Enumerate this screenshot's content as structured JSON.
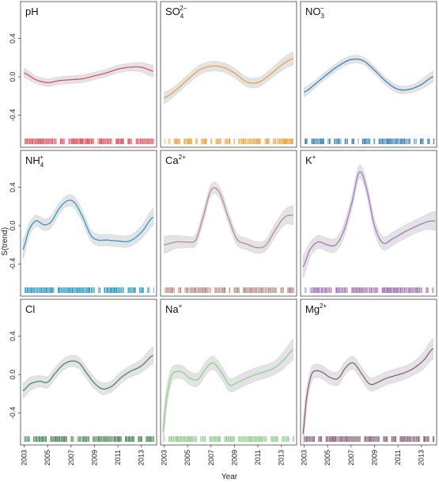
{
  "xlabel": "Year",
  "ylabel": "S(trend)",
  "x_ticks": [
    "2003",
    "2005",
    "2007",
    "2009",
    "2011",
    "2013"
  ],
  "y_ticks": [
    "0.4",
    "0.0",
    "-0.4"
  ],
  "chart_data": {
    "type": "line",
    "title": "",
    "xlabel": "Year",
    "ylabel": "S(trend)",
    "xlim": [
      2002.7,
      2014.3
    ],
    "ylim": [
      -0.62,
      0.62
    ],
    "x_ticks": [
      2003,
      2005,
      2007,
      2009,
      2011,
      2013
    ],
    "y_ticks": [
      0.4,
      0.0,
      -0.4
    ],
    "grid": false,
    "layout": "3x3 panels",
    "panels": [
      {
        "title_parts": [
          {
            "t": "pH"
          }
        ],
        "color": "#e0505a",
        "x": [
          2003.0,
          2004.0,
          2005.0,
          2006.0,
          2007.0,
          2008.0,
          2009.0,
          2010.0,
          2011.0,
          2012.0,
          2013.0,
          2014.0
        ],
        "y": [
          0.04,
          -0.03,
          -0.06,
          -0.04,
          -0.03,
          -0.02,
          0.01,
          0.04,
          0.08,
          0.1,
          0.1,
          0.06
        ],
        "band": [
          0.05,
          0.04,
          0.04,
          0.04,
          0.04,
          0.04,
          0.04,
          0.04,
          0.04,
          0.04,
          0.05,
          0.06
        ]
      },
      {
        "title_parts": [
          {
            "t": "SO"
          },
          {
            "t": "4",
            "sub": true
          },
          {
            "t": "2−",
            "sup": true
          }
        ],
        "color": "#e8a33a",
        "x": [
          2003.0,
          2004.0,
          2005.0,
          2006.0,
          2007.0,
          2008.0,
          2009.0,
          2010.0,
          2011.0,
          2012.0,
          2013.0,
          2014.0
        ],
        "y": [
          -0.22,
          -0.14,
          -0.03,
          0.07,
          0.11,
          0.1,
          0.04,
          -0.05,
          -0.06,
          0.02,
          0.12,
          0.19
        ],
        "band": [
          0.06,
          0.05,
          0.05,
          0.05,
          0.05,
          0.05,
          0.05,
          0.05,
          0.05,
          0.05,
          0.06,
          0.07
        ]
      },
      {
        "title_parts": [
          {
            "t": "NO"
          },
          {
            "t": "3",
            "sub": true
          },
          {
            "t": "−",
            "sup": true
          }
        ],
        "color": "#3d84b8",
        "x": [
          2003.0,
          2004.0,
          2005.0,
          2006.0,
          2007.0,
          2008.0,
          2009.0,
          2010.0,
          2011.0,
          2012.0,
          2013.0,
          2014.0
        ],
        "y": [
          -0.16,
          -0.07,
          0.03,
          0.12,
          0.18,
          0.17,
          0.07,
          -0.05,
          -0.13,
          -0.13,
          -0.08,
          0.0
        ],
        "band": [
          0.05,
          0.04,
          0.04,
          0.04,
          0.04,
          0.04,
          0.04,
          0.04,
          0.04,
          0.04,
          0.05,
          0.06
        ]
      },
      {
        "title_parts": [
          {
            "t": "NH"
          },
          {
            "t": "4",
            "sub": true
          },
          {
            "t": "+",
            "sup": true
          }
        ],
        "color": "#2a9bc6",
        "x": [
          2002.9,
          2003.4,
          2004.0,
          2004.7,
          2005.3,
          2006.0,
          2006.7,
          2007.3,
          2008.0,
          2008.7,
          2009.3,
          2010.0,
          2011.0,
          2012.0,
          2013.0,
          2014.0
        ],
        "y": [
          -0.25,
          -0.05,
          0.05,
          0.01,
          0.04,
          0.18,
          0.26,
          0.24,
          0.09,
          -0.1,
          -0.15,
          -0.15,
          -0.16,
          -0.16,
          -0.07,
          0.09
        ],
        "band": [
          0.1,
          0.07,
          0.06,
          0.06,
          0.06,
          0.06,
          0.06,
          0.06,
          0.06,
          0.06,
          0.06,
          0.06,
          0.06,
          0.06,
          0.07,
          0.09
        ]
      },
      {
        "title_parts": [
          {
            "t": "Ca"
          },
          {
            "t": "2+",
            "sup": true
          }
        ],
        "color": "#b88c88",
        "x": [
          2003.0,
          2004.0,
          2005.0,
          2005.7,
          2006.3,
          2007.0,
          2007.7,
          2008.5,
          2009.2,
          2010.0,
          2011.0,
          2011.7,
          2012.5,
          2013.3,
          2014.0
        ],
        "y": [
          -0.2,
          -0.17,
          -0.17,
          -0.15,
          0.08,
          0.37,
          0.35,
          0.08,
          -0.14,
          -0.19,
          -0.23,
          -0.2,
          -0.04,
          0.09,
          0.11
        ],
        "band": [
          0.09,
          0.07,
          0.06,
          0.06,
          0.06,
          0.06,
          0.06,
          0.06,
          0.06,
          0.06,
          0.06,
          0.06,
          0.07,
          0.08,
          0.1
        ]
      },
      {
        "title_parts": [
          {
            "t": "K"
          },
          {
            "t": "+",
            "sup": true
          }
        ],
        "color": "#a678b6",
        "x": [
          2002.9,
          2003.5,
          2004.2,
          2005.0,
          2005.7,
          2006.4,
          2007.1,
          2007.7,
          2008.3,
          2009.0,
          2009.7,
          2010.5,
          2011.5,
          2012.5,
          2013.5,
          2014.2
        ],
        "y": [
          -0.43,
          -0.25,
          -0.17,
          -0.2,
          -0.2,
          -0.05,
          0.25,
          0.56,
          0.4,
          0.0,
          -0.18,
          -0.14,
          -0.07,
          -0.01,
          0.04,
          0.05
        ],
        "band": [
          0.12,
          0.08,
          0.07,
          0.07,
          0.07,
          0.07,
          0.07,
          0.07,
          0.07,
          0.07,
          0.07,
          0.07,
          0.07,
          0.07,
          0.08,
          0.1
        ]
      },
      {
        "title_parts": [
          {
            "t": "Cl"
          }
        ],
        "color": "#4a8a58",
        "x": [
          2002.9,
          2003.5,
          2004.3,
          2005.0,
          2005.7,
          2006.3,
          2007.0,
          2007.7,
          2008.3,
          2009.0,
          2009.7,
          2010.5,
          2011.3,
          2012.0,
          2013.0,
          2014.0
        ],
        "y": [
          -0.17,
          -0.1,
          -0.07,
          -0.08,
          0.02,
          0.1,
          0.14,
          0.12,
          0.02,
          -0.09,
          -0.15,
          -0.12,
          -0.03,
          0.03,
          0.09,
          0.2
        ],
        "band": [
          0.08,
          0.07,
          0.06,
          0.06,
          0.06,
          0.06,
          0.06,
          0.06,
          0.06,
          0.06,
          0.06,
          0.06,
          0.06,
          0.06,
          0.07,
          0.09
        ]
      },
      {
        "title_parts": [
          {
            "t": "Na"
          },
          {
            "t": "+",
            "sup": true
          }
        ],
        "color": "#8fcf8a",
        "x": [
          2002.9,
          2003.2,
          2003.6,
          2004.0,
          2004.6,
          2005.2,
          2005.9,
          2006.6,
          2007.2,
          2007.9,
          2008.6,
          2009.3,
          2010.0,
          2010.8,
          2011.6,
          2012.4,
          2013.2,
          2014.0
        ],
        "y": [
          -0.6,
          -0.25,
          -0.02,
          0.03,
          0.02,
          -0.04,
          -0.05,
          0.07,
          0.12,
          0.02,
          -0.11,
          -0.08,
          -0.04,
          0.0,
          0.03,
          0.07,
          0.15,
          0.26
        ],
        "band": [
          0.15,
          0.11,
          0.08,
          0.07,
          0.07,
          0.07,
          0.07,
          0.07,
          0.07,
          0.07,
          0.07,
          0.07,
          0.07,
          0.07,
          0.07,
          0.07,
          0.09,
          0.11
        ]
      },
      {
        "title_parts": [
          {
            "t": "Mg"
          },
          {
            "t": "2+",
            "sup": true
          }
        ],
        "color": "#8a6078",
        "x": [
          2002.9,
          2003.2,
          2003.6,
          2004.0,
          2004.6,
          2005.2,
          2005.9,
          2006.6,
          2007.2,
          2007.9,
          2008.6,
          2009.3,
          2010.0,
          2010.8,
          2011.6,
          2012.4,
          2013.2,
          2014.0
        ],
        "y": [
          -0.62,
          -0.25,
          -0.01,
          0.04,
          0.02,
          -0.03,
          -0.04,
          0.08,
          0.12,
          0.01,
          -0.1,
          -0.08,
          -0.04,
          -0.01,
          0.02,
          0.07,
          0.15,
          0.27
        ],
        "band": [
          0.15,
          0.11,
          0.08,
          0.07,
          0.07,
          0.07,
          0.07,
          0.07,
          0.07,
          0.07,
          0.07,
          0.07,
          0.07,
          0.07,
          0.07,
          0.07,
          0.09,
          0.11
        ]
      }
    ]
  }
}
